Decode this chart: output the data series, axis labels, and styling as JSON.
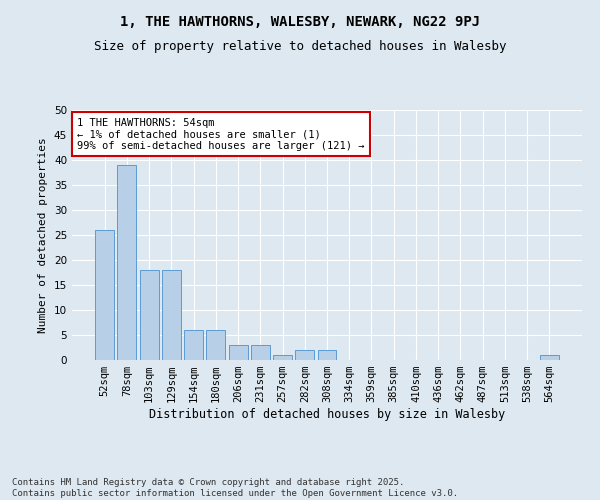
{
  "title": "1, THE HAWTHORNS, WALESBY, NEWARK, NG22 9PJ",
  "subtitle": "Size of property relative to detached houses in Walesby",
  "xlabel": "Distribution of detached houses by size in Walesby",
  "ylabel": "Number of detached properties",
  "categories": [
    "52sqm",
    "78sqm",
    "103sqm",
    "129sqm",
    "154sqm",
    "180sqm",
    "206sqm",
    "231sqm",
    "257sqm",
    "282sqm",
    "308sqm",
    "334sqm",
    "359sqm",
    "385sqm",
    "410sqm",
    "436sqm",
    "462sqm",
    "487sqm",
    "513sqm",
    "538sqm",
    "564sqm"
  ],
  "values": [
    26,
    39,
    18,
    18,
    6,
    6,
    3,
    3,
    1,
    2,
    2,
    0,
    0,
    0,
    0,
    0,
    0,
    0,
    0,
    0,
    1
  ],
  "bar_color": "#b8cfe8",
  "bar_edge_color": "#5b9bd5",
  "ylim": [
    0,
    50
  ],
  "yticks": [
    0,
    5,
    10,
    15,
    20,
    25,
    30,
    35,
    40,
    45,
    50
  ],
  "annotation_text": "1 THE HAWTHORNS: 54sqm\n← 1% of detached houses are smaller (1)\n99% of semi-detached houses are larger (121) →",
  "annotation_box_color": "#ffffff",
  "annotation_box_edge": "#cc0000",
  "bg_color": "#dde8f0",
  "plot_bg_color": "#dde8f0",
  "grid_color": "#ffffff",
  "footer_line1": "Contains HM Land Registry data © Crown copyright and database right 2025.",
  "footer_line2": "Contains public sector information licensed under the Open Government Licence v3.0.",
  "title_fontsize": 10,
  "subtitle_fontsize": 9,
  "xlabel_fontsize": 8.5,
  "ylabel_fontsize": 8,
  "tick_fontsize": 7.5,
  "annotation_fontsize": 7.5,
  "footer_fontsize": 6.5
}
